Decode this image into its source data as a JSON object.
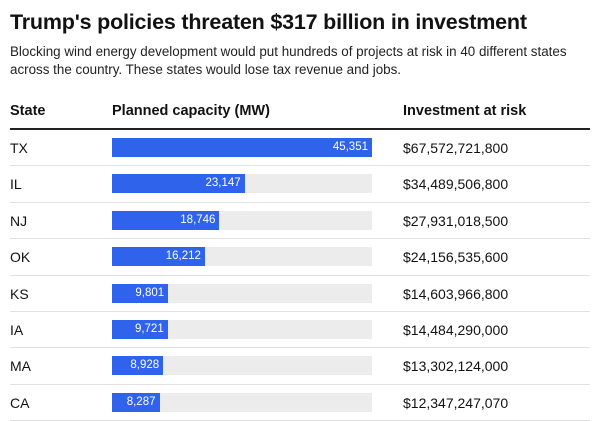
{
  "title": "Trump's policies threaten $317 billion in investment",
  "subtitle": "Blocking wind energy development would put hundreds of projects at risk in 40 different states across the country. These states would lose tax revenue and jobs.",
  "colors": {
    "bar": "#2f63ec",
    "track": "#ececec"
  },
  "chart_data": {
    "type": "table",
    "columns": [
      "State",
      "Planned capacity (MW)",
      "Investment at risk"
    ],
    "bar_max": 45351,
    "rows": [
      {
        "state": "TX",
        "capacity": 45351,
        "capacity_label": "45,351",
        "investment": "$67,572,721,800"
      },
      {
        "state": "IL",
        "capacity": 23147,
        "capacity_label": "23,147",
        "investment": "$34,489,506,800"
      },
      {
        "state": "NJ",
        "capacity": 18746,
        "capacity_label": "18,746",
        "investment": "$27,931,018,500"
      },
      {
        "state": "OK",
        "capacity": 16212,
        "capacity_label": "16,212",
        "investment": "$24,156,535,600"
      },
      {
        "state": "KS",
        "capacity": 9801,
        "capacity_label": "9,801",
        "investment": "$14,603,966,800"
      },
      {
        "state": "IA",
        "capacity": 9721,
        "capacity_label": "9,721",
        "investment": "$14,484,290,000"
      },
      {
        "state": "MA",
        "capacity": 8928,
        "capacity_label": "8,928",
        "investment": "$13,302,124,000"
      },
      {
        "state": "CA",
        "capacity": 8287,
        "capacity_label": "8,287",
        "investment": "$12,347,247,070"
      }
    ]
  }
}
